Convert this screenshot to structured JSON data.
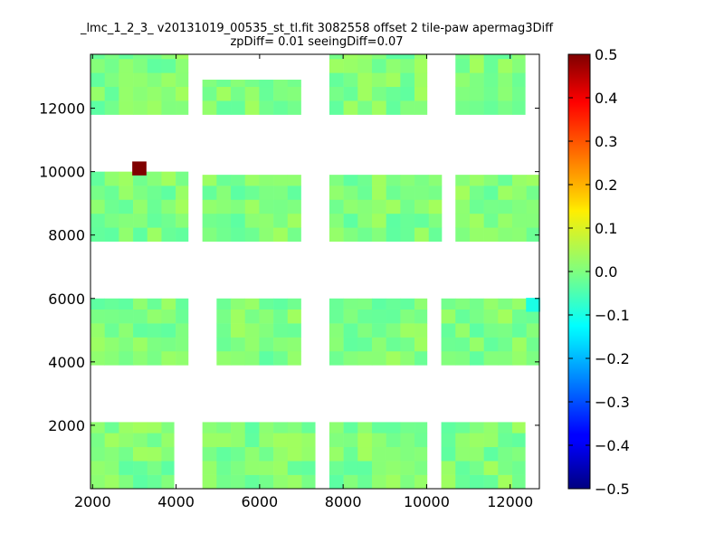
{
  "chart_data": {
    "type": "heatmap",
    "title": "_lmc_1_2_3_ v20131019_00535_st_tl.fit 3082558 offset 2 tile-paw apermag3Diff",
    "subtitle": "zpDiff= 0.01 seeingDiff=0.07",
    "xlabel": "",
    "ylabel": "",
    "xlim": [
      1950,
      12700
    ],
    "ylim": [
      0,
      13700
    ],
    "x_ticks": [
      2000,
      4000,
      6000,
      8000,
      10000,
      12000
    ],
    "y_ticks": [
      2000,
      4000,
      6000,
      8000,
      10000,
      12000
    ],
    "colorbar": {
      "colormap": "jet",
      "min": -0.5,
      "max": 0.5,
      "ticks": [
        "0.5",
        "0.4",
        "0.3",
        "0.2",
        "0.1",
        "0.0",
        "−0.1",
        "−0.2",
        "−0.3",
        "−0.4",
        "−0.5"
      ]
    },
    "grid": false,
    "cell_size": [
      340,
      440
    ],
    "description_of_blocks": [
      {
        "x_range": [
          1950,
          4290
        ],
        "y_range": [
          11800,
          13700
        ],
        "typical_value": 0.0
      },
      {
        "x_range": [
          4630,
          6990
        ],
        "y_range": [
          11800,
          12900
        ],
        "typical_value": 0.0
      },
      {
        "x_range": [
          7670,
          10010
        ],
        "y_range": [
          11800,
          13700
        ],
        "typical_value": 0.0
      },
      {
        "x_range": [
          10690,
          12360
        ],
        "y_range": [
          11800,
          13700
        ],
        "typical_value": 0.0
      },
      {
        "x_range": [
          1950,
          4290
        ],
        "y_range": [
          7800,
          10000
        ],
        "typical_value": 0.0
      },
      {
        "x_range": [
          4630,
          6990
        ],
        "y_range": [
          7800,
          9900
        ],
        "typical_value": 0.0
      },
      {
        "x_range": [
          7670,
          10360
        ],
        "y_range": [
          7800,
          9900
        ],
        "typical_value": 0.0
      },
      {
        "x_range": [
          10690,
          12700
        ],
        "y_range": [
          7800,
          9900
        ],
        "typical_value": 0.0
      },
      {
        "x_range": [
          1950,
          4290
        ],
        "y_range": [
          3900,
          6000
        ],
        "typical_value": 0.0
      },
      {
        "x_range": [
          4970,
          6990
        ],
        "y_range": [
          3900,
          6000
        ],
        "typical_value": 0.0
      },
      {
        "x_range": [
          7670,
          10010
        ],
        "y_range": [
          3900,
          6000
        ],
        "typical_value": 0.0
      },
      {
        "x_range": [
          10350,
          12700
        ],
        "y_range": [
          3900,
          6000
        ],
        "typical_value": 0.0
      },
      {
        "x_range": [
          1950,
          3950
        ],
        "y_range": [
          0,
          2100
        ],
        "typical_value": 0.0
      },
      {
        "x_range": [
          4630,
          7330
        ],
        "y_range": [
          0,
          2100
        ],
        "typical_value": 0.0
      },
      {
        "x_range": [
          7670,
          10010
        ],
        "y_range": [
          0,
          2100
        ],
        "typical_value": 0.0
      },
      {
        "x_range": [
          10350,
          12360
        ],
        "y_range": [
          0,
          2100
        ],
        "typical_value": 0.0
      }
    ],
    "outliers": [
      {
        "x": 3120,
        "y": 10100,
        "value": 0.5
      },
      {
        "x": 12550,
        "y": 5800,
        "value": -0.1
      }
    ]
  }
}
